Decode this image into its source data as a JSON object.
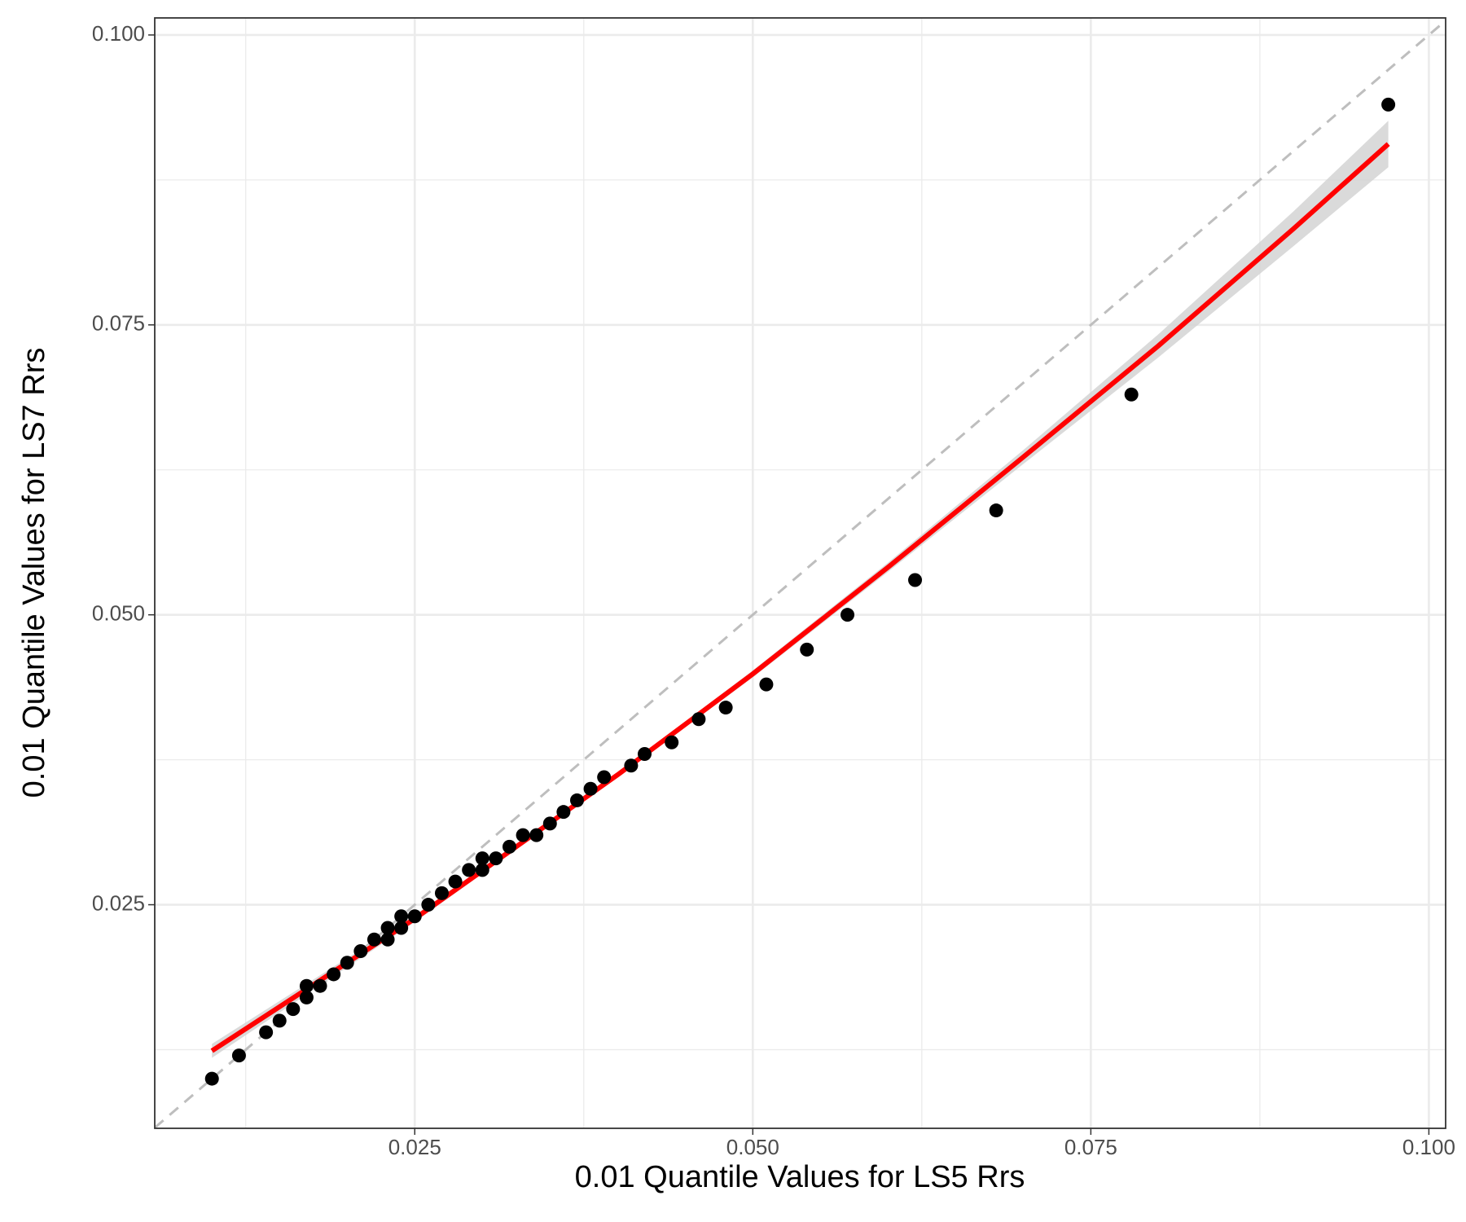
{
  "chart_data": {
    "type": "scatter",
    "x_label": "0.01 Quantile Values for LS5 Rrs",
    "y_label": "0.01 Quantile Values for LS7 Rrs",
    "x": [
      0.01,
      0.012,
      0.014,
      0.015,
      0.016,
      0.017,
      0.017,
      0.018,
      0.019,
      0.02,
      0.021,
      0.022,
      0.023,
      0.023,
      0.024,
      0.024,
      0.025,
      0.026,
      0.027,
      0.028,
      0.029,
      0.03,
      0.03,
      0.031,
      0.032,
      0.033,
      0.034,
      0.035,
      0.036,
      0.037,
      0.038,
      0.039,
      0.041,
      0.042,
      0.044,
      0.046,
      0.048,
      0.051,
      0.054,
      0.057,
      0.062,
      0.068,
      0.078,
      0.097
    ],
    "values": [
      0.01,
      0.012,
      0.014,
      0.015,
      0.016,
      0.017,
      0.018,
      0.018,
      0.019,
      0.02,
      0.021,
      0.022,
      0.022,
      0.023,
      0.023,
      0.024,
      0.024,
      0.025,
      0.026,
      0.027,
      0.028,
      0.028,
      0.029,
      0.029,
      0.03,
      0.031,
      0.031,
      0.032,
      0.033,
      0.034,
      0.035,
      0.036,
      0.037,
      0.038,
      0.039,
      0.041,
      0.042,
      0.044,
      0.047,
      0.05,
      0.053,
      0.059,
      0.069,
      0.094
    ],
    "color": "#000000",
    "fit": {
      "color": "#ff0000",
      "band_color": "#d3d3d3",
      "x": [
        0.01,
        0.025,
        0.04,
        0.05,
        0.06,
        0.07,
        0.08,
        0.09,
        0.097
      ],
      "values": [
        0.0124,
        0.0238,
        0.0362,
        0.0449,
        0.0541,
        0.0636,
        0.0732,
        0.0833,
        0.0906
      ],
      "lower": [
        0.0118,
        0.0235,
        0.036,
        0.0446,
        0.0537,
        0.063,
        0.0722,
        0.0818,
        0.0886
      ],
      "upper": [
        0.013,
        0.0241,
        0.0364,
        0.0452,
        0.0545,
        0.0642,
        0.0742,
        0.0848,
        0.0926
      ]
    },
    "identity_line": true,
    "xlim": [
      0.00577,
      0.10124
    ],
    "ylim": [
      0.00572,
      0.10147
    ],
    "xticks": [
      0.025,
      {
        "value": 0.05,
        "label": "0.050"
      },
      0.075,
      {
        "value": 0.1,
        "label": "0.100"
      }
    ],
    "yticks": [
      0.025,
      {
        "value": 0.05,
        "label": "0.050"
      },
      0.075,
      {
        "value": 0.1,
        "label": "0.100"
      }
    ],
    "x_minor_ticks": [
      0.0125,
      0.0375,
      0.0625,
      0.0875
    ],
    "y_minor_ticks": [
      0.0125,
      0.0375,
      0.0625,
      0.0875
    ],
    "grid": true
  }
}
